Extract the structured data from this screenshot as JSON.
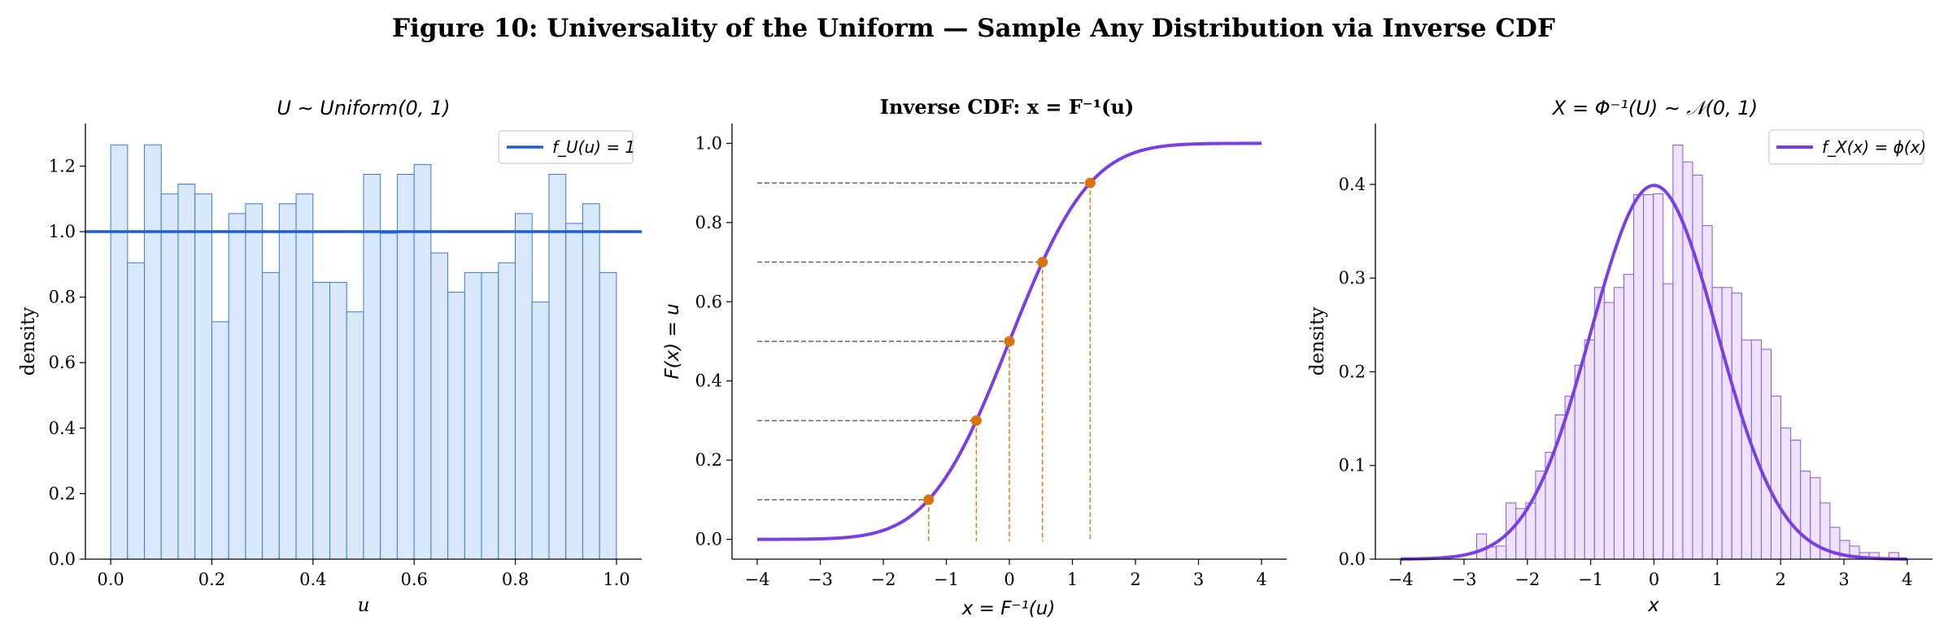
{
  "figure": {
    "title": "Figure 10: Universality of the Uniform — Sample Any Distribution via Inverse CDF"
  },
  "chart_data": [
    {
      "type": "bar",
      "title": "U ∼ Uniform(0, 1)",
      "xlabel": "u",
      "ylabel": "density",
      "xlim": [
        -0.05,
        1.05
      ],
      "ylim": [
        0,
        1.33
      ],
      "xticks": [
        "0.0",
        "0.2",
        "0.4",
        "0.6",
        "0.8",
        "1.0"
      ],
      "yticks": [
        "0.0",
        "0.2",
        "0.4",
        "0.6",
        "0.8",
        "1.0",
        "1.2"
      ],
      "grid": false,
      "legend_position": "top-right",
      "bin_start": 0.0,
      "bin_width": 0.03333,
      "histogram": [
        1.265,
        0.905,
        1.265,
        1.115,
        1.145,
        1.115,
        0.725,
        1.055,
        1.085,
        0.875,
        1.085,
        1.115,
        0.845,
        0.845,
        0.755,
        1.175,
        0.995,
        1.175,
        1.205,
        0.935,
        0.815,
        0.875,
        0.875,
        0.905,
        1.055,
        0.785,
        1.175,
        1.025,
        1.085,
        0.875
      ],
      "reference_line": {
        "name": "f_U(u) = 1",
        "y": 1.0
      },
      "colors": {
        "bar_fill": "#d9e8fb",
        "bar_edge": "#3a7bd5",
        "line": "#1f5fd6"
      }
    },
    {
      "type": "line",
      "title": "Inverse CDF: x = F⁻¹(u)",
      "xlabel": "x = F⁻¹(u)",
      "ylabel": "F(x) = u",
      "xlim": [
        -4.4,
        4.4
      ],
      "ylim": [
        -0.05,
        1.05
      ],
      "xticks": [
        "−4",
        "−3",
        "−2",
        "−1",
        "0",
        "1",
        "2",
        "3",
        "4"
      ],
      "yticks": [
        "0.0",
        "0.2",
        "0.4",
        "0.6",
        "0.8",
        "1.0"
      ],
      "grid": false,
      "curve": "standard normal CDF",
      "points": [
        {
          "u": 0.1,
          "x": -1.2816
        },
        {
          "u": 0.3,
          "x": -0.5244
        },
        {
          "u": 0.5,
          "x": 0.0
        },
        {
          "u": 0.7,
          "x": 0.5244
        },
        {
          "u": 0.9,
          "x": 1.2816
        }
      ],
      "colors": {
        "curve": "#7a3fe0",
        "point": "#d9730d",
        "hguide": "#666666",
        "vguide": "#e07b14"
      }
    },
    {
      "type": "bar",
      "title": "X = Φ⁻¹(U) ∼ 𝒩(0, 1)",
      "xlabel": "x",
      "ylabel": "density",
      "xlim": [
        -4.4,
        4.4
      ],
      "ylim": [
        0,
        0.465
      ],
      "xticks": [
        "−4",
        "−3",
        "−2",
        "−1",
        "0",
        "1",
        "2",
        "3",
        "4"
      ],
      "yticks": [
        "0.0",
        "0.1",
        "0.2",
        "0.3",
        "0.4"
      ],
      "grid": false,
      "legend_position": "top-right",
      "bin_start": -2.8,
      "bin_width": 0.155,
      "histogram": [
        0.027,
        0.013,
        0.014,
        0.06,
        0.054,
        0.06,
        0.094,
        0.114,
        0.154,
        0.174,
        0.207,
        0.234,
        0.29,
        0.274,
        0.29,
        0.304,
        0.389,
        0.389,
        0.39,
        0.294,
        0.442,
        0.424,
        0.41,
        0.356,
        0.29,
        0.29,
        0.284,
        0.234,
        0.234,
        0.224,
        0.174,
        0.14,
        0.127,
        0.094,
        0.087,
        0.06,
        0.034,
        0.02,
        0.014,
        0.007,
        0.007,
        0.0,
        0.007
      ],
      "reference_curve": {
        "name": "f_X(x) = ϕ(x)",
        "function": "standard normal pdf"
      },
      "colors": {
        "bar_fill": "#eee3fb",
        "bar_edge": "#8a55e6",
        "curve": "#7a3fe0"
      }
    }
  ]
}
